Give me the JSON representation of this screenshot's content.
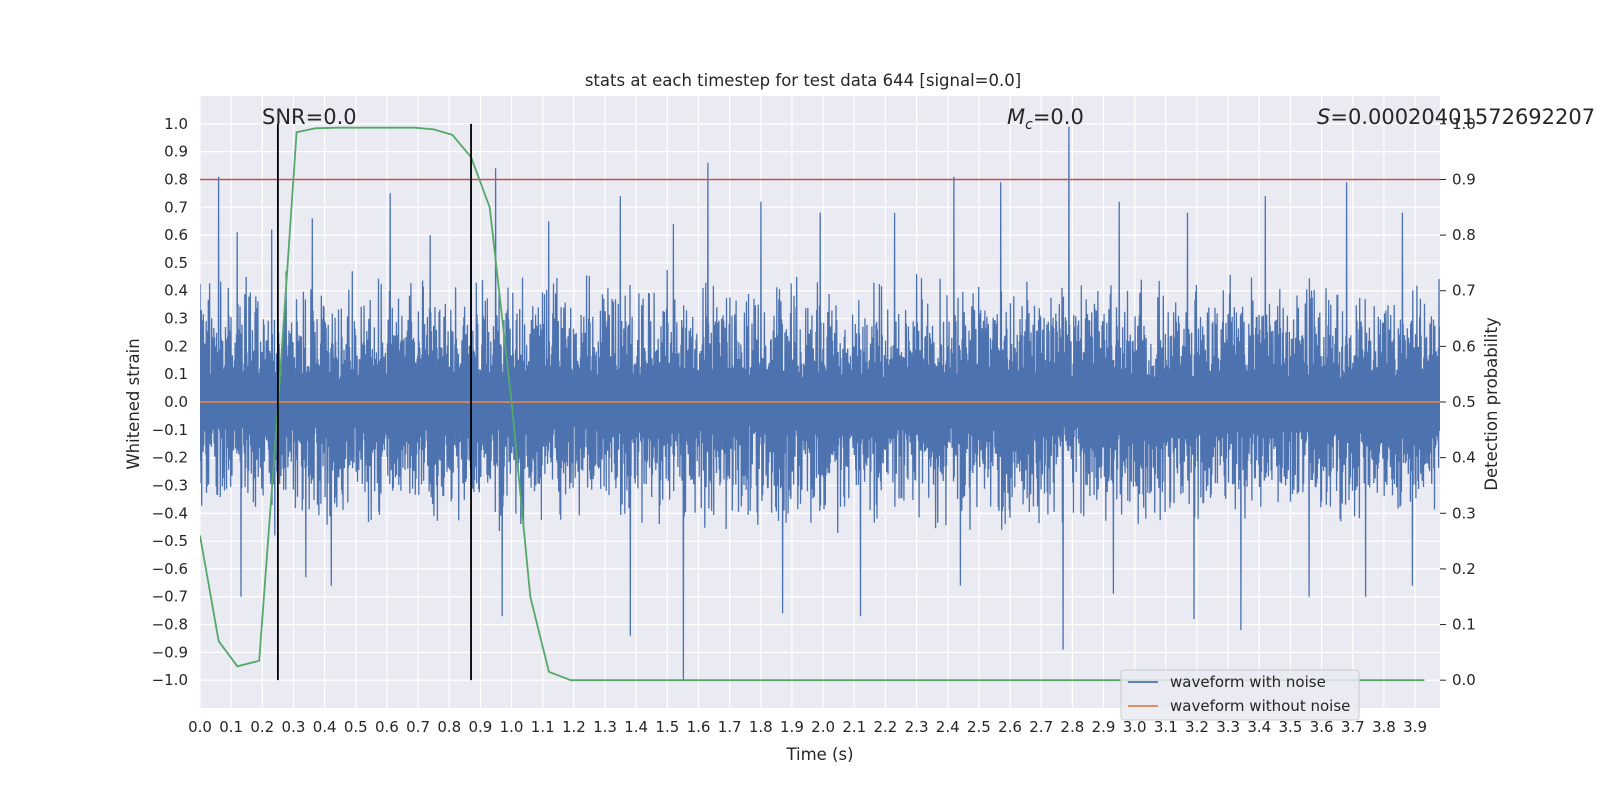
{
  "chart_data": {
    "type": "line",
    "title": "stats at each timestep for test data 644 [signal=0.0]",
    "xlabel": "Time (s)",
    "ylabel_left": "Whitened strain",
    "ylabel_right": "Detection probability",
    "xlim": [
      0.0,
      3.98
    ],
    "ylim_left": [
      -1.1,
      1.1
    ],
    "ylim_right": [
      -0.05,
      1.05
    ],
    "x_ticks": [
      "0.0",
      "0.1",
      "0.2",
      "0.3",
      "0.4",
      "0.5",
      "0.6",
      "0.7",
      "0.8",
      "0.9",
      "1.0",
      "1.1",
      "1.2",
      "1.3",
      "1.4",
      "1.5",
      "1.6",
      "1.7",
      "1.8",
      "1.9",
      "2.0",
      "2.1",
      "2.2",
      "2.3",
      "2.4",
      "2.5",
      "2.6",
      "2.7",
      "2.8",
      "2.9",
      "3.0",
      "3.1",
      "3.2",
      "3.3",
      "3.4",
      "3.5",
      "3.6",
      "3.7",
      "3.8",
      "3.9"
    ],
    "y_ticks_left": [
      "1.0",
      "0.9",
      "0.8",
      "0.7",
      "0.6",
      "0.5",
      "0.4",
      "0.3",
      "0.2",
      "0.1",
      "0.0",
      "−0.1",
      "−0.2",
      "−0.3",
      "−0.4",
      "−0.5",
      "−0.6",
      "−0.7",
      "−0.8",
      "−0.9",
      "−1.0"
    ],
    "y_ticks_right": [
      "1.0",
      "0.9",
      "0.8",
      "0.7",
      "0.6",
      "0.5",
      "0.4",
      "0.3",
      "0.2",
      "0.1",
      "0.0"
    ],
    "grid": true,
    "legend_position": "lower-right",
    "annotations": {
      "snr": "SNR=0.0",
      "mc_sym": "M",
      "mc_sub": "c",
      "mc_val": "=0.0",
      "s_sym": "S",
      "s_val": "=0.00020401572692207"
    },
    "series": [
      {
        "name": "waveform with noise",
        "color": "#4c72b0",
        "axis": "left",
        "duration": 3.98,
        "peaks_max": [
          {
            "x": 0.06,
            "y": 0.81
          },
          {
            "x": 0.12,
            "y": 0.61
          },
          {
            "x": 0.23,
            "y": 0.62
          },
          {
            "x": 0.36,
            "y": 0.66
          },
          {
            "x": 0.61,
            "y": 0.75
          },
          {
            "x": 0.74,
            "y": 0.6
          },
          {
            "x": 0.87,
            "y": 0.73
          },
          {
            "x": 0.95,
            "y": 0.84
          },
          {
            "x": 1.12,
            "y": 0.65
          },
          {
            "x": 1.35,
            "y": 0.74
          },
          {
            "x": 1.52,
            "y": 0.64
          },
          {
            "x": 1.63,
            "y": 0.86
          },
          {
            "x": 1.8,
            "y": 0.72
          },
          {
            "x": 1.99,
            "y": 0.68
          },
          {
            "x": 2.23,
            "y": 0.68
          },
          {
            "x": 2.42,
            "y": 0.81
          },
          {
            "x": 2.57,
            "y": 0.79
          },
          {
            "x": 2.79,
            "y": 0.99
          },
          {
            "x": 2.95,
            "y": 0.72
          },
          {
            "x": 3.17,
            "y": 0.68
          },
          {
            "x": 3.42,
            "y": 0.74
          },
          {
            "x": 3.68,
            "y": 0.79
          },
          {
            "x": 3.86,
            "y": 0.68
          }
        ],
        "peaks_min": [
          {
            "x": 0.13,
            "y": -0.7
          },
          {
            "x": 0.24,
            "y": -0.48
          },
          {
            "x": 0.34,
            "y": -0.63
          },
          {
            "x": 0.42,
            "y": -0.66
          },
          {
            "x": 0.97,
            "y": -0.77
          },
          {
            "x": 1.38,
            "y": -0.84
          },
          {
            "x": 1.55,
            "y": -1.0
          },
          {
            "x": 1.87,
            "y": -0.76
          },
          {
            "x": 2.12,
            "y": -0.77
          },
          {
            "x": 2.44,
            "y": -0.66
          },
          {
            "x": 2.77,
            "y": -0.89
          },
          {
            "x": 2.93,
            "y": -0.69
          },
          {
            "x": 3.19,
            "y": -0.78
          },
          {
            "x": 3.34,
            "y": -0.82
          },
          {
            "x": 3.56,
            "y": -0.7
          },
          {
            "x": 3.74,
            "y": -0.7
          },
          {
            "x": 3.89,
            "y": -0.66
          }
        ]
      },
      {
        "name": "waveform without noise",
        "color": "#dd8452",
        "axis": "left",
        "x": [
          0.0,
          3.98
        ],
        "y": [
          0.0,
          0.0
        ]
      },
      {
        "name": "",
        "color": "#55a868",
        "axis": "right",
        "x": [
          0.0,
          0.06,
          0.12,
          0.19,
          0.25,
          0.31,
          0.37,
          0.44,
          0.5,
          0.56,
          0.62,
          0.69,
          0.75,
          0.81,
          0.87,
          0.93,
          1.0,
          1.06,
          1.12,
          1.19,
          1.25,
          3.93
        ],
        "y": [
          0.26,
          0.07,
          0.025,
          0.035,
          0.49,
          0.985,
          0.992,
          0.993,
          0.993,
          0.993,
          0.993,
          0.993,
          0.99,
          0.98,
          0.94,
          0.85,
          0.5,
          0.15,
          0.015,
          0.0,
          0.0,
          0.0
        ]
      }
    ],
    "reference_lines": {
      "threshold": {
        "axis": "right",
        "y": 0.9,
        "color": "#c44e52"
      },
      "vertical": [
        {
          "x": 0.25,
          "ymin": 0.0,
          "ymax": 1.0,
          "color": "#000000"
        },
        {
          "x": 0.87,
          "ymin": 0.0,
          "ymax": 1.0,
          "color": "#000000"
        }
      ]
    }
  }
}
